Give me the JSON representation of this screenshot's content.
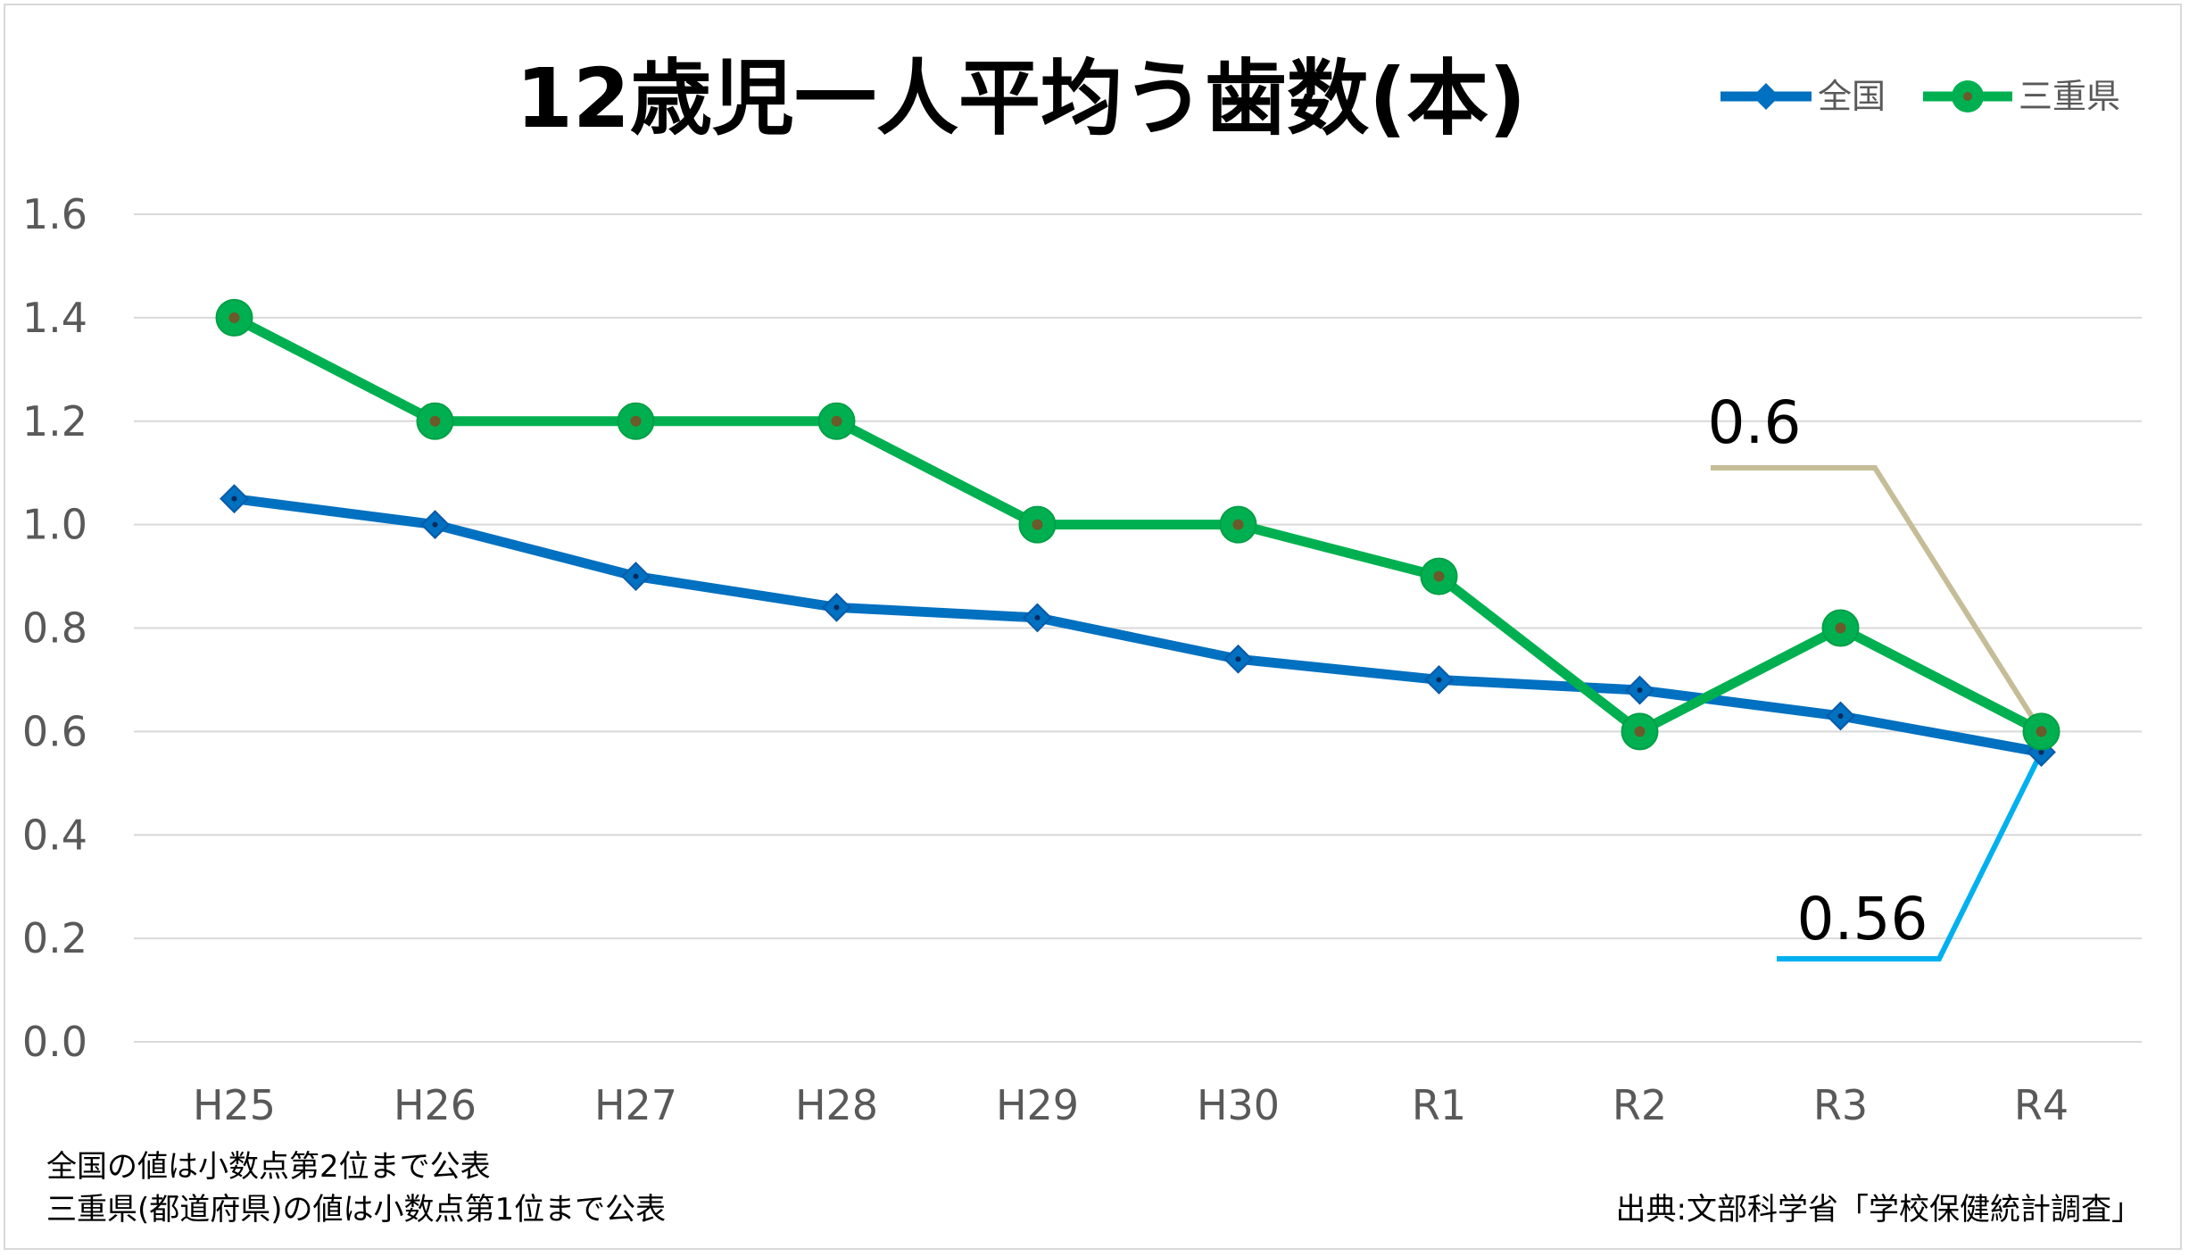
{
  "chart_data": {
    "type": "line",
    "title": "12歳児一人平均う歯数(本)",
    "categories": [
      "H25",
      "H26",
      "H27",
      "H28",
      "H29",
      "H30",
      "R1",
      "R2",
      "R3",
      "R4"
    ],
    "ylim": [
      0.0,
      1.6
    ],
    "yticks": [
      "0.0",
      "0.2",
      "0.4",
      "0.6",
      "0.8",
      "1.0",
      "1.2",
      "1.4",
      "1.6"
    ],
    "grid": true,
    "legend_position": "top-right",
    "series": [
      {
        "name": "全国",
        "color": "#0070c0",
        "marker": "diamond",
        "values": [
          1.05,
          1.0,
          0.9,
          0.84,
          0.82,
          0.74,
          0.7,
          0.68,
          0.63,
          0.56
        ]
      },
      {
        "name": "三重県",
        "color": "#00b050",
        "marker": "circle",
        "values": [
          1.4,
          1.2,
          1.2,
          1.2,
          1.0,
          1.0,
          0.9,
          0.6,
          0.8,
          0.6
        ]
      }
    ],
    "annotations": [
      {
        "text": "0.6",
        "series": "三重県",
        "category": "R4",
        "line_color": "#c4bd97"
      },
      {
        "text": "0.56",
        "series": "全国",
        "category": "R4",
        "line_color": "#00b0f0"
      }
    ],
    "notes": [
      "全国の値は小数点第2位まで公表",
      "三重県(都道府県)の値は小数点第1位まで公表"
    ],
    "source": "出典:文部科学省「学校保健統計調査」"
  }
}
